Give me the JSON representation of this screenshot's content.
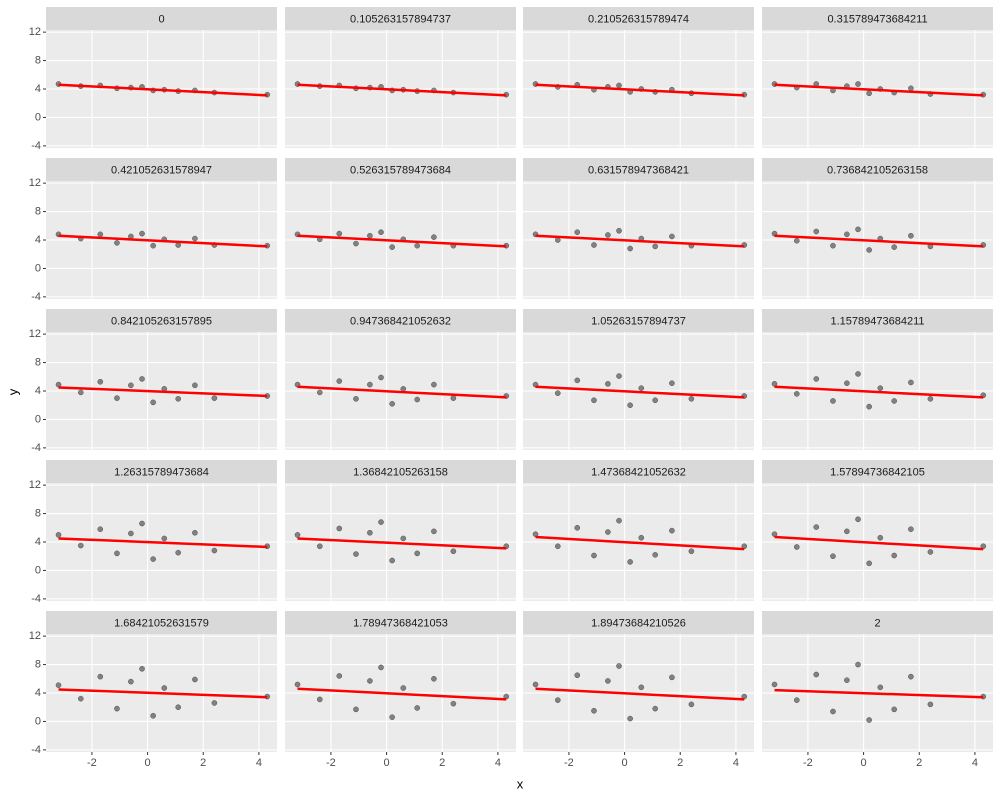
{
  "chart_data": {
    "type": "scatter",
    "x_label": "x",
    "y_label": "y",
    "xlim": [
      -3.65,
      4.65
    ],
    "xticks": [
      -2,
      0,
      2,
      4
    ],
    "ylim": [
      -4.3,
      12.3
    ],
    "yticks": [
      -4,
      0,
      4,
      8,
      12
    ],
    "grid": true,
    "point_color": "#000000",
    "line_color": "#ff0000",
    "x": [
      -3.2,
      -2.4,
      -1.7,
      -1.1,
      -0.6,
      -0.2,
      0.2,
      0.6,
      1.1,
      1.7,
      2.4,
      4.3
    ],
    "fit_x": [
      -3.2,
      4.3
    ],
    "panels": [
      {
        "title": "0",
        "y": [
          4.7,
          4.4,
          4.5,
          4.1,
          4.2,
          4.3,
          3.8,
          3.9,
          3.7,
          3.8,
          3.5,
          3.2
        ],
        "fit_y": [
          4.6,
          3.1
        ]
      },
      {
        "title": "0.105263157894737",
        "y": [
          4.7,
          4.4,
          4.5,
          4.1,
          4.2,
          4.3,
          3.8,
          3.9,
          3.7,
          3.8,
          3.5,
          3.2
        ],
        "fit_y": [
          4.6,
          3.1
        ]
      },
      {
        "title": "0.210526315789474",
        "y": [
          4.7,
          4.3,
          4.6,
          3.9,
          4.3,
          4.5,
          3.6,
          4.0,
          3.6,
          3.9,
          3.4,
          3.2
        ],
        "fit_y": [
          4.6,
          3.1
        ]
      },
      {
        "title": "0.315789473684211",
        "y": [
          4.7,
          4.2,
          4.7,
          3.8,
          4.4,
          4.7,
          3.4,
          4.0,
          3.5,
          4.1,
          3.3,
          3.2
        ],
        "fit_y": [
          4.6,
          3.1
        ]
      },
      {
        "title": "0.421052631578947",
        "y": [
          4.8,
          4.2,
          4.8,
          3.6,
          4.5,
          4.9,
          3.2,
          4.1,
          3.3,
          4.2,
          3.3,
          3.2
        ],
        "fit_y": [
          4.6,
          3.1
        ]
      },
      {
        "title": "0.526315789473684",
        "y": [
          4.8,
          4.1,
          4.9,
          3.5,
          4.6,
          5.1,
          3.0,
          4.1,
          3.2,
          4.4,
          3.2,
          3.2
        ],
        "fit_y": [
          4.6,
          3.1
        ]
      },
      {
        "title": "0.631578947368421",
        "y": [
          4.8,
          4.0,
          5.1,
          3.3,
          4.7,
          5.3,
          2.8,
          4.2,
          3.1,
          4.5,
          3.2,
          3.3
        ],
        "fit_y": [
          4.6,
          3.1
        ]
      },
      {
        "title": "0.736842105263158",
        "y": [
          4.9,
          3.9,
          5.2,
          3.2,
          4.8,
          5.5,
          2.6,
          4.2,
          3.0,
          4.6,
          3.1,
          3.3
        ],
        "fit_y": [
          4.6,
          3.1
        ]
      },
      {
        "title": "0.842105263157895",
        "y": [
          4.9,
          3.8,
          5.3,
          3.0,
          4.8,
          5.7,
          2.4,
          4.3,
          2.9,
          4.8,
          3.0,
          3.3
        ],
        "fit_y": [
          4.5,
          3.3
        ]
      },
      {
        "title": "0.947368421052632",
        "y": [
          4.9,
          3.8,
          5.4,
          2.9,
          4.9,
          5.9,
          2.2,
          4.3,
          2.8,
          4.9,
          3.0,
          3.3
        ],
        "fit_y": [
          4.6,
          3.1
        ]
      },
      {
        "title": "1.05263157894737",
        "y": [
          4.9,
          3.7,
          5.5,
          2.7,
          5.0,
          6.1,
          2.0,
          4.4,
          2.7,
          5.1,
          2.9,
          3.3
        ],
        "fit_y": [
          4.6,
          3.1
        ]
      },
      {
        "title": "1.15789473684211",
        "y": [
          5.0,
          3.6,
          5.7,
          2.6,
          5.1,
          6.4,
          1.8,
          4.4,
          2.6,
          5.2,
          2.9,
          3.4
        ],
        "fit_y": [
          4.6,
          3.1
        ]
      },
      {
        "title": "1.26315789473684",
        "y": [
          5.0,
          3.5,
          5.8,
          2.4,
          5.2,
          6.6,
          1.6,
          4.5,
          2.5,
          5.3,
          2.8,
          3.4
        ],
        "fit_y": [
          4.5,
          3.3
        ]
      },
      {
        "title": "1.36842105263158",
        "y": [
          5.0,
          3.4,
          5.9,
          2.3,
          5.3,
          6.8,
          1.4,
          4.5,
          2.4,
          5.5,
          2.7,
          3.4
        ],
        "fit_y": [
          4.5,
          3.1
        ]
      },
      {
        "title": "1.47368421052632",
        "y": [
          5.1,
          3.4,
          6.0,
          2.1,
          5.4,
          7.0,
          1.2,
          4.6,
          2.2,
          5.6,
          2.7,
          3.4
        ],
        "fit_y": [
          4.7,
          3.0
        ]
      },
      {
        "title": "1.57894736842105",
        "y": [
          5.1,
          3.3,
          6.1,
          2.0,
          5.5,
          7.2,
          1.0,
          4.6,
          2.1,
          5.8,
          2.6,
          3.4
        ],
        "fit_y": [
          4.7,
          3.0
        ]
      },
      {
        "title": "1.68421052631579",
        "y": [
          5.1,
          3.2,
          6.3,
          1.8,
          5.6,
          7.4,
          0.8,
          4.7,
          2.0,
          5.9,
          2.6,
          3.5
        ],
        "fit_y": [
          4.5,
          3.4
        ]
      },
      {
        "title": "1.78947368421053",
        "y": [
          5.2,
          3.1,
          6.4,
          1.7,
          5.7,
          7.6,
          0.6,
          4.7,
          1.9,
          6.0,
          2.5,
          3.5
        ],
        "fit_y": [
          4.6,
          3.1
        ]
      },
      {
        "title": "1.89473684210526",
        "y": [
          5.2,
          3.0,
          6.5,
          1.5,
          5.7,
          7.8,
          0.4,
          4.8,
          1.8,
          6.2,
          2.4,
          3.5
        ],
        "fit_y": [
          4.6,
          3.1
        ]
      },
      {
        "title": "2",
        "y": [
          5.2,
          3.0,
          6.6,
          1.4,
          5.8,
          8.0,
          0.2,
          4.8,
          1.7,
          6.3,
          2.4,
          3.5
        ],
        "fit_y": [
          4.4,
          3.4
        ]
      }
    ]
  }
}
